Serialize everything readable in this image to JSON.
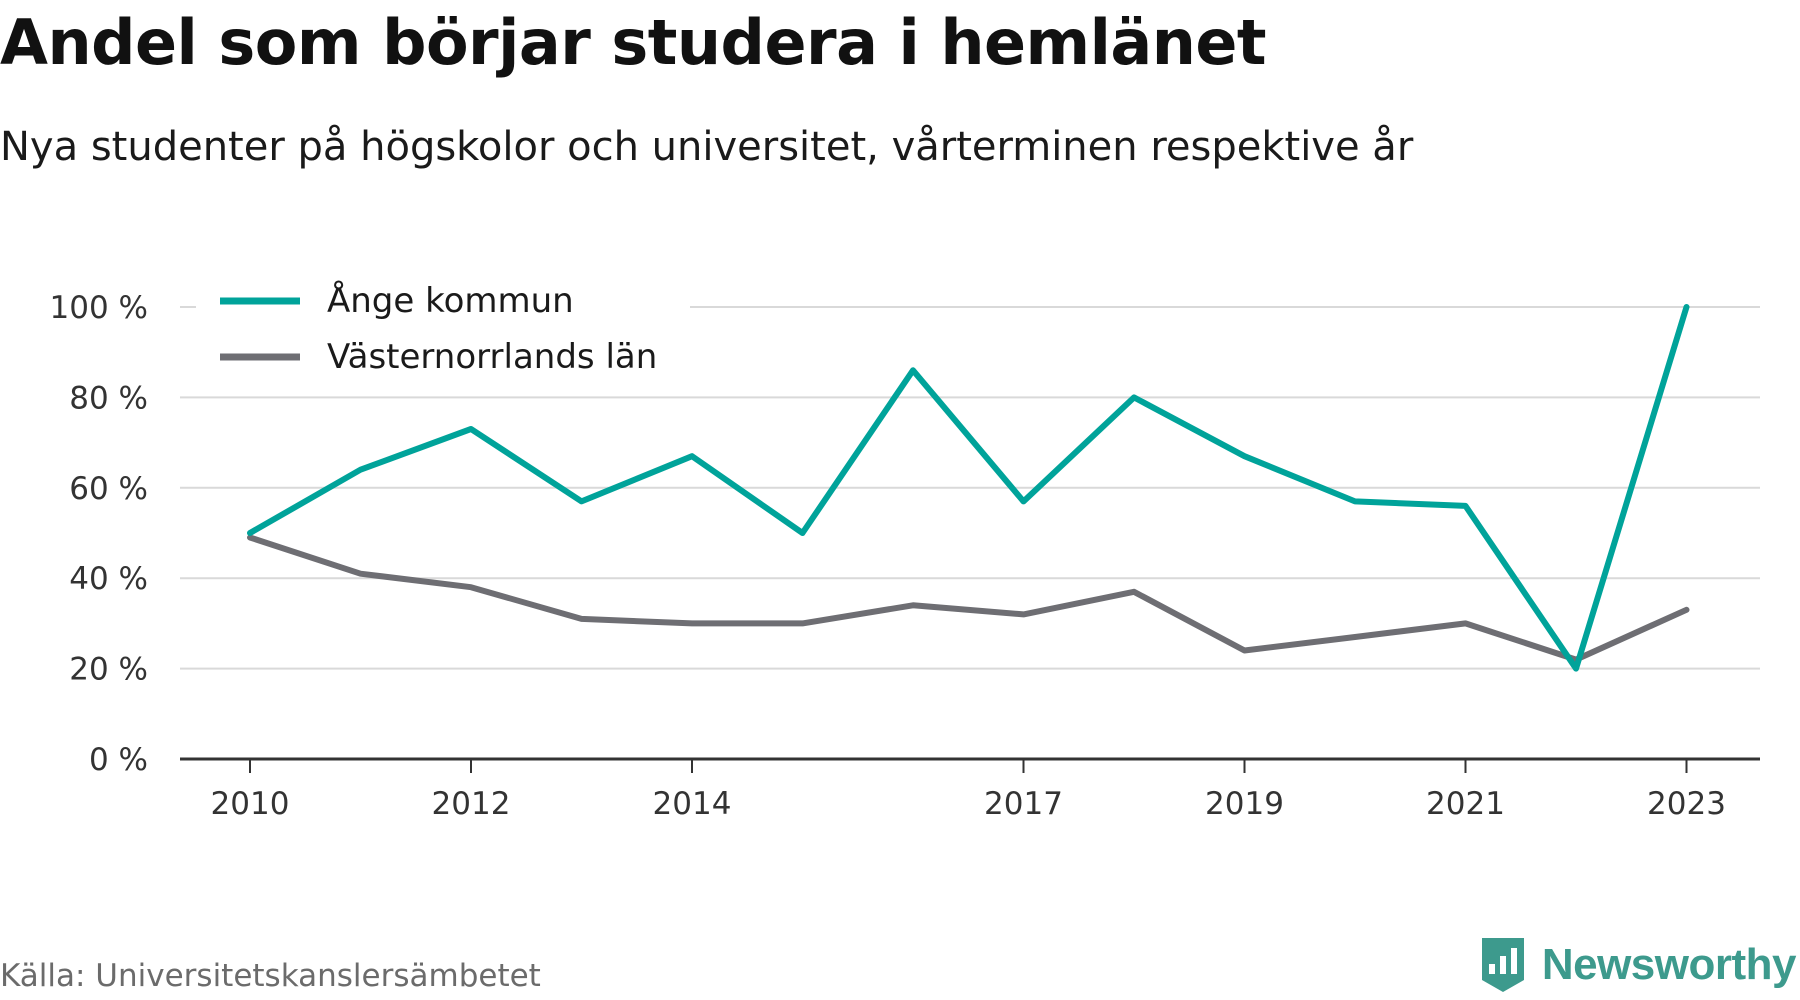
{
  "title": "Andel som börjar studera i hemlänet",
  "subtitle": "Nya studenter på högskolor och universitet, vårterminen respektive år",
  "source": "Källa: Universitetskanslersämbetet",
  "brand": {
    "name": "Newsworthy",
    "icon": "newsworthy-logo-icon",
    "color": "#3d9a8d"
  },
  "colors": {
    "ange": "#00a39a",
    "lan": "#6e6e73",
    "grid": "#d9d9d9",
    "axis": "#333333"
  },
  "chart_data": {
    "type": "line",
    "x": [
      2010,
      2011,
      2012,
      2013,
      2014,
      2015,
      2016,
      2017,
      2018,
      2019,
      2020,
      2021,
      2022,
      2023
    ],
    "x_tick_labels": [
      "2010",
      "2012",
      "2014",
      "2017",
      "2019",
      "2021",
      "2023"
    ],
    "y_tick_labels": [
      "0 %",
      "20 %",
      "40 %",
      "60 %",
      "80 %",
      "100 %"
    ],
    "ylim": [
      0,
      100
    ],
    "y_unit": "%",
    "grid": true,
    "legend_position": "top-left",
    "series": [
      {
        "name": "Ånge kommun",
        "color": "#00a39a",
        "values": [
          50,
          64,
          73,
          57,
          67,
          50,
          86,
          57,
          80,
          67,
          57,
          56,
          20,
          100
        ]
      },
      {
        "name": "Västernorrlands län",
        "color": "#6e6e73",
        "values": [
          49,
          41,
          38,
          31,
          30,
          30,
          34,
          32,
          37,
          24,
          27,
          30,
          22,
          33
        ]
      }
    ]
  }
}
